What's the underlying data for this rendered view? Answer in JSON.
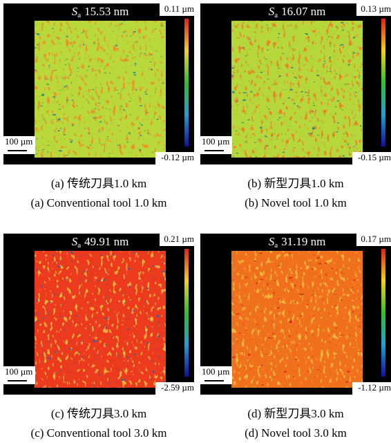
{
  "sa_symbol": "S",
  "sa_subscript": "a",
  "panels": [
    {
      "sa": "15.53 nm",
      "max": "0.11 µm",
      "min": "-0.12 µm",
      "scale": "100 µm",
      "caption_cn": "(a) 传统刀具1.0 km",
      "caption_en": "(a) Conventional tool 1.0 km",
      "base_color": "#b9d83a",
      "spot_color": "#f08a28",
      "dark_color": "#2f8a8a"
    },
    {
      "sa": "16.07 nm",
      "max": "0.13 µm",
      "min": "-0.15 µm",
      "scale": "100 µm",
      "caption_cn": "(b) 新型刀具1.0 km",
      "caption_en": "(b) Novel tool 1.0 km",
      "base_color": "#b6d73a",
      "spot_color": "#f07a24",
      "dark_color": "#2a7f86"
    },
    {
      "sa": "49.91 nm",
      "max": "0.21 µm",
      "min": "-2.59 µm",
      "scale": "100 µm",
      "caption_cn": "(c) 传统刀具3.0 km",
      "caption_en": "(c) Conventional tool 3.0 km",
      "base_color": "#ec3a1e",
      "spot_color": "#f6c040",
      "dark_color": "#3060a0"
    },
    {
      "sa": "31.19 nm",
      "max": "0.17 µm",
      "min": "-1.12 µm",
      "scale": "100 µm",
      "caption_cn": "(d) 新型刀具3.0 km",
      "caption_en": "(d) Novel tool 3.0 km",
      "base_color": "#f0701e",
      "spot_color": "#f2c23a",
      "dark_color": "#d8281a"
    }
  ]
}
